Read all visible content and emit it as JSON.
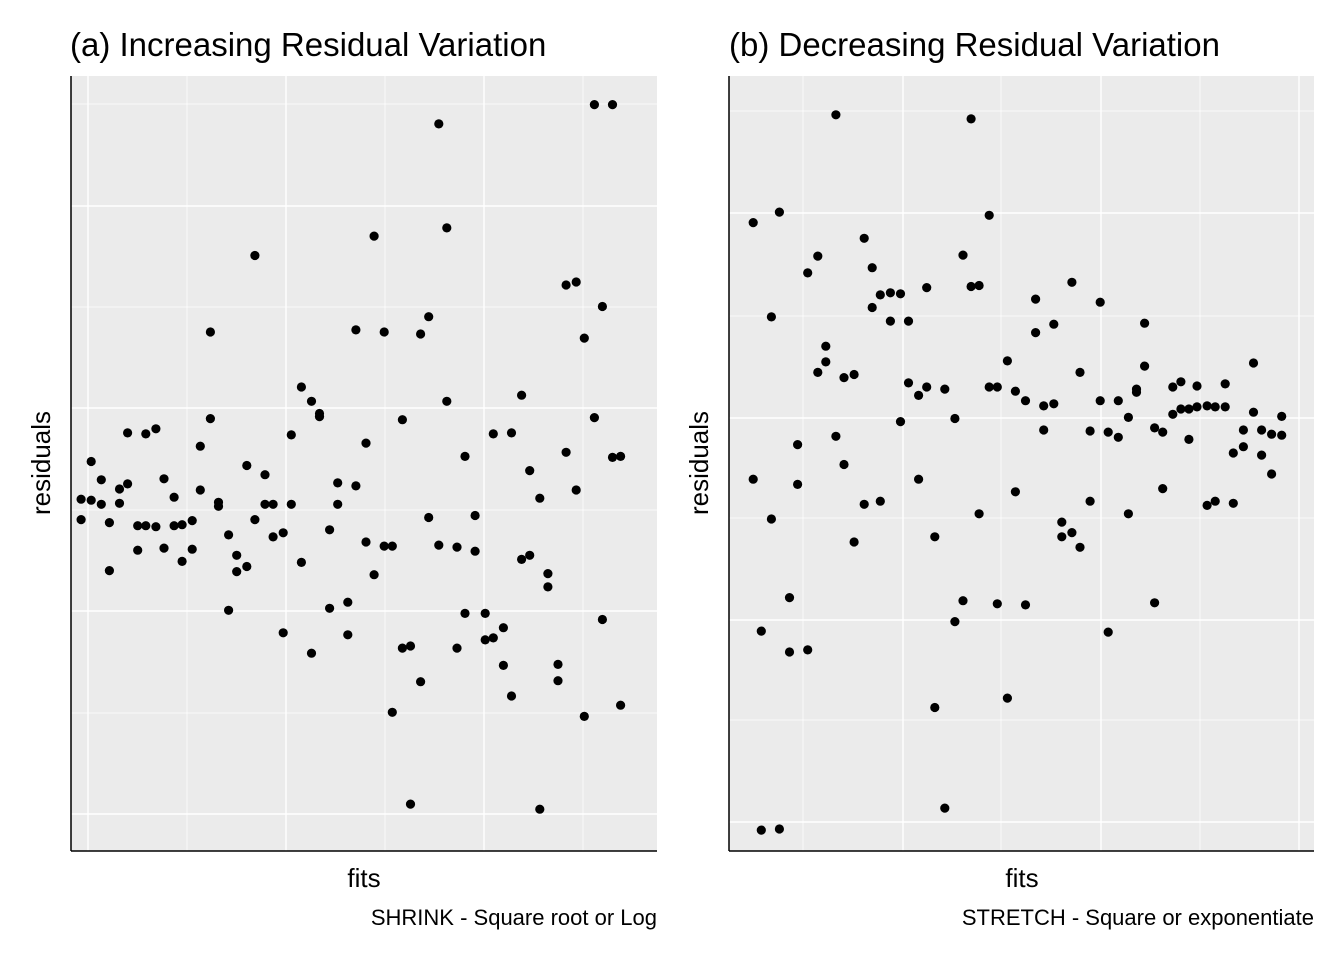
{
  "chart_data": [
    {
      "type": "scatter",
      "title": "(a) Increasing Residual Variation",
      "xlabel": "fits",
      "ylabel": "residuals",
      "caption": "SHRINK - Square root or Log",
      "point_color": "#000000",
      "panel_background": "#ebebeb",
      "grid": true,
      "axis_ticks_shown": false,
      "xlim": [
        0.1,
        3.0
      ],
      "ylim": [
        -3.4,
        4.2
      ],
      "points": [
        {
          "x": 0.15,
          "y": -0.15
        },
        {
          "x": 0.15,
          "y": 0.05
        },
        {
          "x": 0.2,
          "y": 0.04
        },
        {
          "x": 0.2,
          "y": 0.42
        },
        {
          "x": 0.25,
          "y": 0.24
        },
        {
          "x": 0.25,
          "y": 0.0
        },
        {
          "x": 0.29,
          "y": -0.18
        },
        {
          "x": 0.29,
          "y": -0.65
        },
        {
          "x": 0.34,
          "y": 0.15
        },
        {
          "x": 0.34,
          "y": 0.01
        },
        {
          "x": 0.38,
          "y": 0.2
        },
        {
          "x": 0.38,
          "y": 0.7
        },
        {
          "x": 0.43,
          "y": -0.21
        },
        {
          "x": 0.43,
          "y": -0.45
        },
        {
          "x": 0.47,
          "y": 0.69
        },
        {
          "x": 0.47,
          "y": -0.21
        },
        {
          "x": 0.52,
          "y": 0.74
        },
        {
          "x": 0.52,
          "y": -0.22
        },
        {
          "x": 0.56,
          "y": 0.25
        },
        {
          "x": 0.56,
          "y": -0.43
        },
        {
          "x": 0.61,
          "y": 0.07
        },
        {
          "x": 0.61,
          "y": -0.21
        },
        {
          "x": 0.65,
          "y": -0.2
        },
        {
          "x": 0.65,
          "y": -0.56
        },
        {
          "x": 0.7,
          "y": -0.16
        },
        {
          "x": 0.7,
          "y": -0.44
        },
        {
          "x": 0.74,
          "y": 0.57
        },
        {
          "x": 0.74,
          "y": 0.14
        },
        {
          "x": 0.79,
          "y": 0.84
        },
        {
          "x": 0.79,
          "y": 1.69
        },
        {
          "x": 0.83,
          "y": 0.02
        },
        {
          "x": 0.83,
          "y": -0.02
        },
        {
          "x": 0.88,
          "y": -0.3
        },
        {
          "x": 0.88,
          "y": -1.04
        },
        {
          "x": 0.92,
          "y": -0.5
        },
        {
          "x": 0.92,
          "y": -0.66
        },
        {
          "x": 0.97,
          "y": 0.38
        },
        {
          "x": 0.97,
          "y": -0.61
        },
        {
          "x": 1.01,
          "y": 2.44
        },
        {
          "x": 1.01,
          "y": -0.15
        },
        {
          "x": 1.06,
          "y": 0.29
        },
        {
          "x": 1.06,
          "y": 0.0
        },
        {
          "x": 1.1,
          "y": 0.0
        },
        {
          "x": 1.1,
          "y": -0.32
        },
        {
          "x": 1.15,
          "y": -1.26
        },
        {
          "x": 1.15,
          "y": -0.28
        },
        {
          "x": 1.19,
          "y": 0.0
        },
        {
          "x": 1.19,
          "y": 0.68
        },
        {
          "x": 1.24,
          "y": 1.15
        },
        {
          "x": 1.24,
          "y": -0.57
        },
        {
          "x": 1.29,
          "y": 1.01
        },
        {
          "x": 1.29,
          "y": -1.46
        },
        {
          "x": 1.33,
          "y": 0.89
        },
        {
          "x": 1.33,
          "y": 0.86
        },
        {
          "x": 1.38,
          "y": -1.02
        },
        {
          "x": 1.38,
          "y": -0.25
        },
        {
          "x": 1.42,
          "y": 0.0
        },
        {
          "x": 1.42,
          "y": 0.21
        },
        {
          "x": 1.47,
          "y": -0.96
        },
        {
          "x": 1.47,
          "y": -1.28
        },
        {
          "x": 1.51,
          "y": 1.71
        },
        {
          "x": 1.51,
          "y": 0.18
        },
        {
          "x": 1.56,
          "y": 0.6
        },
        {
          "x": 1.56,
          "y": -0.37
        },
        {
          "x": 1.6,
          "y": 2.63
        },
        {
          "x": 1.6,
          "y": -0.69
        },
        {
          "x": 1.65,
          "y": 1.69
        },
        {
          "x": 1.65,
          "y": -0.41
        },
        {
          "x": 1.69,
          "y": -0.41
        },
        {
          "x": 1.69,
          "y": -2.04
        },
        {
          "x": 1.74,
          "y": 0.83
        },
        {
          "x": 1.74,
          "y": -1.41
        },
        {
          "x": 1.78,
          "y": -2.94
        },
        {
          "x": 1.78,
          "y": -1.39
        },
        {
          "x": 1.83,
          "y": 1.67
        },
        {
          "x": 1.83,
          "y": -1.74
        },
        {
          "x": 1.87,
          "y": 1.84
        },
        {
          "x": 1.87,
          "y": -0.13
        },
        {
          "x": 1.92,
          "y": 3.73
        },
        {
          "x": 1.92,
          "y": -0.4
        },
        {
          "x": 1.96,
          "y": 2.71
        },
        {
          "x": 1.96,
          "y": 1.01
        },
        {
          "x": 2.01,
          "y": -0.42
        },
        {
          "x": 2.01,
          "y": -1.41
        },
        {
          "x": 2.05,
          "y": 0.47
        },
        {
          "x": 2.05,
          "y": -1.07
        },
        {
          "x": 2.1,
          "y": -0.11
        },
        {
          "x": 2.1,
          "y": -0.46
        },
        {
          "x": 2.15,
          "y": -1.33
        },
        {
          "x": 2.15,
          "y": -1.07
        },
        {
          "x": 2.19,
          "y": 0.69
        },
        {
          "x": 2.19,
          "y": -1.31
        },
        {
          "x": 2.24,
          "y": -1.21
        },
        {
          "x": 2.24,
          "y": -1.58
        },
        {
          "x": 2.28,
          "y": 0.7
        },
        {
          "x": 2.28,
          "y": -1.88
        },
        {
          "x": 2.33,
          "y": 1.07
        },
        {
          "x": 2.33,
          "y": -0.54
        },
        {
          "x": 2.37,
          "y": -0.5
        },
        {
          "x": 2.37,
          "y": 0.33
        },
        {
          "x": 2.42,
          "y": -2.99
        },
        {
          "x": 2.42,
          "y": 0.06
        },
        {
          "x": 2.46,
          "y": -0.68
        },
        {
          "x": 2.46,
          "y": -0.81
        },
        {
          "x": 2.51,
          "y": -1.73
        },
        {
          "x": 2.51,
          "y": -1.57
        },
        {
          "x": 2.55,
          "y": 2.15
        },
        {
          "x": 2.55,
          "y": 0.51
        },
        {
          "x": 2.6,
          "y": 0.14
        },
        {
          "x": 2.6,
          "y": 2.18
        },
        {
          "x": 2.64,
          "y": 1.63
        },
        {
          "x": 2.64,
          "y": -2.08
        },
        {
          "x": 2.69,
          "y": 3.92
        },
        {
          "x": 2.69,
          "y": 0.85
        },
        {
          "x": 2.73,
          "y": -1.13
        },
        {
          "x": 2.73,
          "y": 1.94
        },
        {
          "x": 2.78,
          "y": 3.92
        },
        {
          "x": 2.78,
          "y": 0.46
        },
        {
          "x": 2.82,
          "y": 0.47
        },
        {
          "x": 2.82,
          "y": -1.97
        }
      ]
    },
    {
      "type": "scatter",
      "title": "(b) Decreasing Residual Variation",
      "xlabel": "fits",
      "ylabel": "residuals",
      "caption": "STRETCH - Square or exponentiate",
      "point_color": "#000000",
      "panel_background": "#ebebeb",
      "grid": true,
      "axis_ticks_shown": false,
      "xlim": [
        0.0,
        2.9
      ],
      "ylim": [
        -4.0,
        3.4
      ],
      "points": [
        {
          "x": 0.12,
          "y": 2.0
        },
        {
          "x": 0.12,
          "y": -0.45
        },
        {
          "x": 0.16,
          "y": -1.9
        },
        {
          "x": 0.16,
          "y": -3.8
        },
        {
          "x": 0.21,
          "y": 1.1
        },
        {
          "x": 0.21,
          "y": -0.83
        },
        {
          "x": 0.25,
          "y": 2.1
        },
        {
          "x": 0.25,
          "y": -3.79
        },
        {
          "x": 0.3,
          "y": -1.58
        },
        {
          "x": 0.3,
          "y": -2.1
        },
        {
          "x": 0.34,
          "y": -0.12
        },
        {
          "x": 0.34,
          "y": -0.5
        },
        {
          "x": 0.39,
          "y": 1.52
        },
        {
          "x": 0.39,
          "y": -2.08
        },
        {
          "x": 0.44,
          "y": 1.68
        },
        {
          "x": 0.44,
          "y": 0.57
        },
        {
          "x": 0.48,
          "y": 0.67
        },
        {
          "x": 0.48,
          "y": 0.82
        },
        {
          "x": 0.53,
          "y": 3.03
        },
        {
          "x": 0.53,
          "y": -0.04
        },
        {
          "x": 0.57,
          "y": 0.52
        },
        {
          "x": 0.57,
          "y": -0.31
        },
        {
          "x": 0.62,
          "y": 0.55
        },
        {
          "x": 0.62,
          "y": -1.05
        },
        {
          "x": 0.67,
          "y": 1.85
        },
        {
          "x": 0.67,
          "y": -0.69
        },
        {
          "x": 0.71,
          "y": 1.57
        },
        {
          "x": 0.71,
          "y": 1.19
        },
        {
          "x": 0.75,
          "y": 1.31
        },
        {
          "x": 0.75,
          "y": -0.66
        },
        {
          "x": 0.8,
          "y": 1.33
        },
        {
          "x": 0.8,
          "y": 1.06
        },
        {
          "x": 0.85,
          "y": 1.32
        },
        {
          "x": 0.85,
          "y": 0.1
        },
        {
          "x": 0.89,
          "y": 0.47
        },
        {
          "x": 0.89,
          "y": 1.06
        },
        {
          "x": 0.94,
          "y": 0.35
        },
        {
          "x": 0.94,
          "y": -0.45
        },
        {
          "x": 0.98,
          "y": 1.38
        },
        {
          "x": 0.98,
          "y": 0.43
        },
        {
          "x": 1.02,
          "y": -2.63
        },
        {
          "x": 1.02,
          "y": -1.0
        },
        {
          "x": 1.07,
          "y": -3.59
        },
        {
          "x": 1.07,
          "y": 0.41
        },
        {
          "x": 1.12,
          "y": -1.81
        },
        {
          "x": 1.12,
          "y": 0.13
        },
        {
          "x": 1.16,
          "y": 1.69
        },
        {
          "x": 1.16,
          "y": -1.61
        },
        {
          "x": 1.2,
          "y": 1.39
        },
        {
          "x": 1.2,
          "y": 2.99
        },
        {
          "x": 1.24,
          "y": 1.4
        },
        {
          "x": 1.24,
          "y": -0.78
        },
        {
          "x": 1.29,
          "y": 2.07
        },
        {
          "x": 1.29,
          "y": 0.43
        },
        {
          "x": 1.33,
          "y": 0.43
        },
        {
          "x": 1.33,
          "y": -1.64
        },
        {
          "x": 1.38,
          "y": 0.68
        },
        {
          "x": 1.38,
          "y": -2.54
        },
        {
          "x": 1.42,
          "y": 0.39
        },
        {
          "x": 1.42,
          "y": -0.57
        },
        {
          "x": 1.47,
          "y": -1.65
        },
        {
          "x": 1.47,
          "y": 0.3
        },
        {
          "x": 1.52,
          "y": 1.27
        },
        {
          "x": 1.52,
          "y": 0.95
        },
        {
          "x": 1.56,
          "y": 0.02
        },
        {
          "x": 1.56,
          "y": 0.25
        },
        {
          "x": 1.61,
          "y": 1.03
        },
        {
          "x": 1.61,
          "y": 0.27
        },
        {
          "x": 1.65,
          "y": -0.86
        },
        {
          "x": 1.65,
          "y": -1.0
        },
        {
          "x": 1.7,
          "y": -0.96
        },
        {
          "x": 1.7,
          "y": 1.43
        },
        {
          "x": 1.74,
          "y": -1.1
        },
        {
          "x": 1.74,
          "y": 0.57
        },
        {
          "x": 1.79,
          "y": -0.66
        },
        {
          "x": 1.79,
          "y": 0.01
        },
        {
          "x": 1.84,
          "y": 1.24
        },
        {
          "x": 1.84,
          "y": 0.3
        },
        {
          "x": 1.88,
          "y": -1.91
        },
        {
          "x": 1.88,
          "y": 0.0
        },
        {
          "x": 1.93,
          "y": 0.3
        },
        {
          "x": 1.93,
          "y": -0.05
        },
        {
          "x": 1.98,
          "y": 0.14
        },
        {
          "x": 1.98,
          "y": -0.78
        },
        {
          "x": 2.02,
          "y": 0.41
        },
        {
          "x": 2.02,
          "y": 0.38
        },
        {
          "x": 2.06,
          "y": 0.63
        },
        {
          "x": 2.06,
          "y": 1.04
        },
        {
          "x": 2.11,
          "y": 0.04
        },
        {
          "x": 2.11,
          "y": -1.63
        },
        {
          "x": 2.15,
          "y": -0.54
        },
        {
          "x": 2.15,
          "y": 0.0
        },
        {
          "x": 2.2,
          "y": 0.43
        },
        {
          "x": 2.2,
          "y": 0.17
        },
        {
          "x": 2.24,
          "y": 0.48
        },
        {
          "x": 2.24,
          "y": 0.22
        },
        {
          "x": 2.28,
          "y": 0.22
        },
        {
          "x": 2.28,
          "y": -0.07
        },
        {
          "x": 2.32,
          "y": 0.24
        },
        {
          "x": 2.32,
          "y": 0.44
        },
        {
          "x": 2.37,
          "y": 0.25
        },
        {
          "x": 2.37,
          "y": -0.7
        },
        {
          "x": 2.41,
          "y": 0.24
        },
        {
          "x": 2.41,
          "y": -0.66
        },
        {
          "x": 2.46,
          "y": 0.46
        },
        {
          "x": 2.46,
          "y": 0.24
        },
        {
          "x": 2.5,
          "y": -0.68
        },
        {
          "x": 2.5,
          "y": -0.2
        },
        {
          "x": 2.55,
          "y": -0.14
        },
        {
          "x": 2.55,
          "y": 0.02
        },
        {
          "x": 2.6,
          "y": 0.66
        },
        {
          "x": 2.6,
          "y": 0.19
        },
        {
          "x": 2.64,
          "y": -0.22
        },
        {
          "x": 2.64,
          "y": 0.02
        },
        {
          "x": 2.69,
          "y": -0.4
        },
        {
          "x": 2.69,
          "y": -0.02
        },
        {
          "x": 2.74,
          "y": 0.15
        },
        {
          "x": 2.74,
          "y": -0.03
        }
      ]
    }
  ]
}
